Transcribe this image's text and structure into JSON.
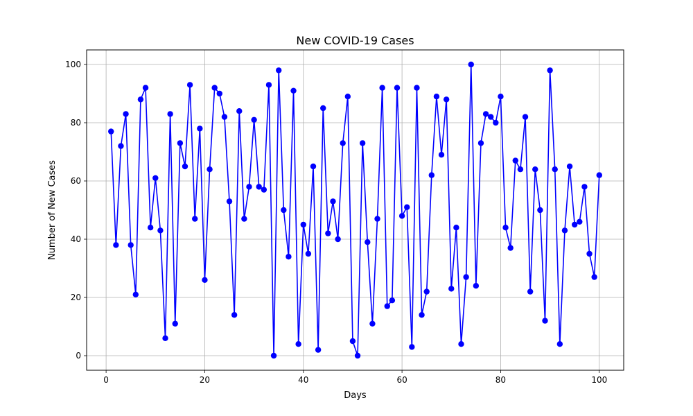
{
  "chart_data": {
    "type": "line",
    "title": "New COVID-19 Cases",
    "xlabel": "Days",
    "ylabel": "Number of New Cases",
    "xlim": [
      -3.95,
      104.95
    ],
    "ylim": [
      -5,
      105
    ],
    "xticks": [
      0,
      20,
      40,
      60,
      80,
      100
    ],
    "yticks": [
      0,
      20,
      40,
      60,
      80,
      100
    ],
    "grid": true,
    "color": "#0000ff",
    "marker": "circle",
    "x": [
      1,
      2,
      3,
      4,
      5,
      6,
      7,
      8,
      9,
      10,
      11,
      12,
      13,
      14,
      15,
      16,
      17,
      18,
      19,
      20,
      21,
      22,
      23,
      24,
      25,
      26,
      27,
      28,
      29,
      30,
      31,
      32,
      33,
      34,
      35,
      36,
      37,
      38,
      39,
      40,
      41,
      42,
      43,
      44,
      45,
      46,
      47,
      48,
      49,
      50,
      51,
      52,
      53,
      54,
      55,
      56,
      57,
      58,
      59,
      60,
      61,
      62,
      63,
      64,
      65,
      66,
      67,
      68,
      69,
      70,
      71,
      72,
      73,
      74,
      75,
      76,
      77,
      78,
      79,
      80,
      81,
      82,
      83,
      84,
      85,
      86,
      87,
      88,
      89,
      90,
      91,
      92,
      93,
      94,
      95,
      96,
      97,
      98,
      99,
      100
    ],
    "y": [
      77,
      38,
      72,
      83,
      38,
      21,
      88,
      92,
      44,
      61,
      43,
      6,
      83,
      11,
      73,
      65,
      93,
      47,
      78,
      26,
      64,
      92,
      90,
      82,
      53,
      14,
      84,
      47,
      58,
      81,
      58,
      57,
      93,
      0,
      98,
      50,
      34,
      91,
      4,
      45,
      35,
      65,
      2,
      85,
      42,
      53,
      40,
      73,
      89,
      5,
      0,
      73,
      39,
      11,
      47,
      92,
      17,
      19,
      92,
      48,
      51,
      3,
      92,
      14,
      22,
      62,
      89,
      69,
      88,
      23,
      44,
      4,
      27,
      100,
      24,
      73,
      83,
      82,
      80,
      89,
      44,
      37,
      67,
      64,
      82,
      22,
      64,
      50,
      12,
      98,
      64,
      4,
      43,
      65,
      45,
      46,
      58,
      35,
      27,
      62
    ]
  }
}
